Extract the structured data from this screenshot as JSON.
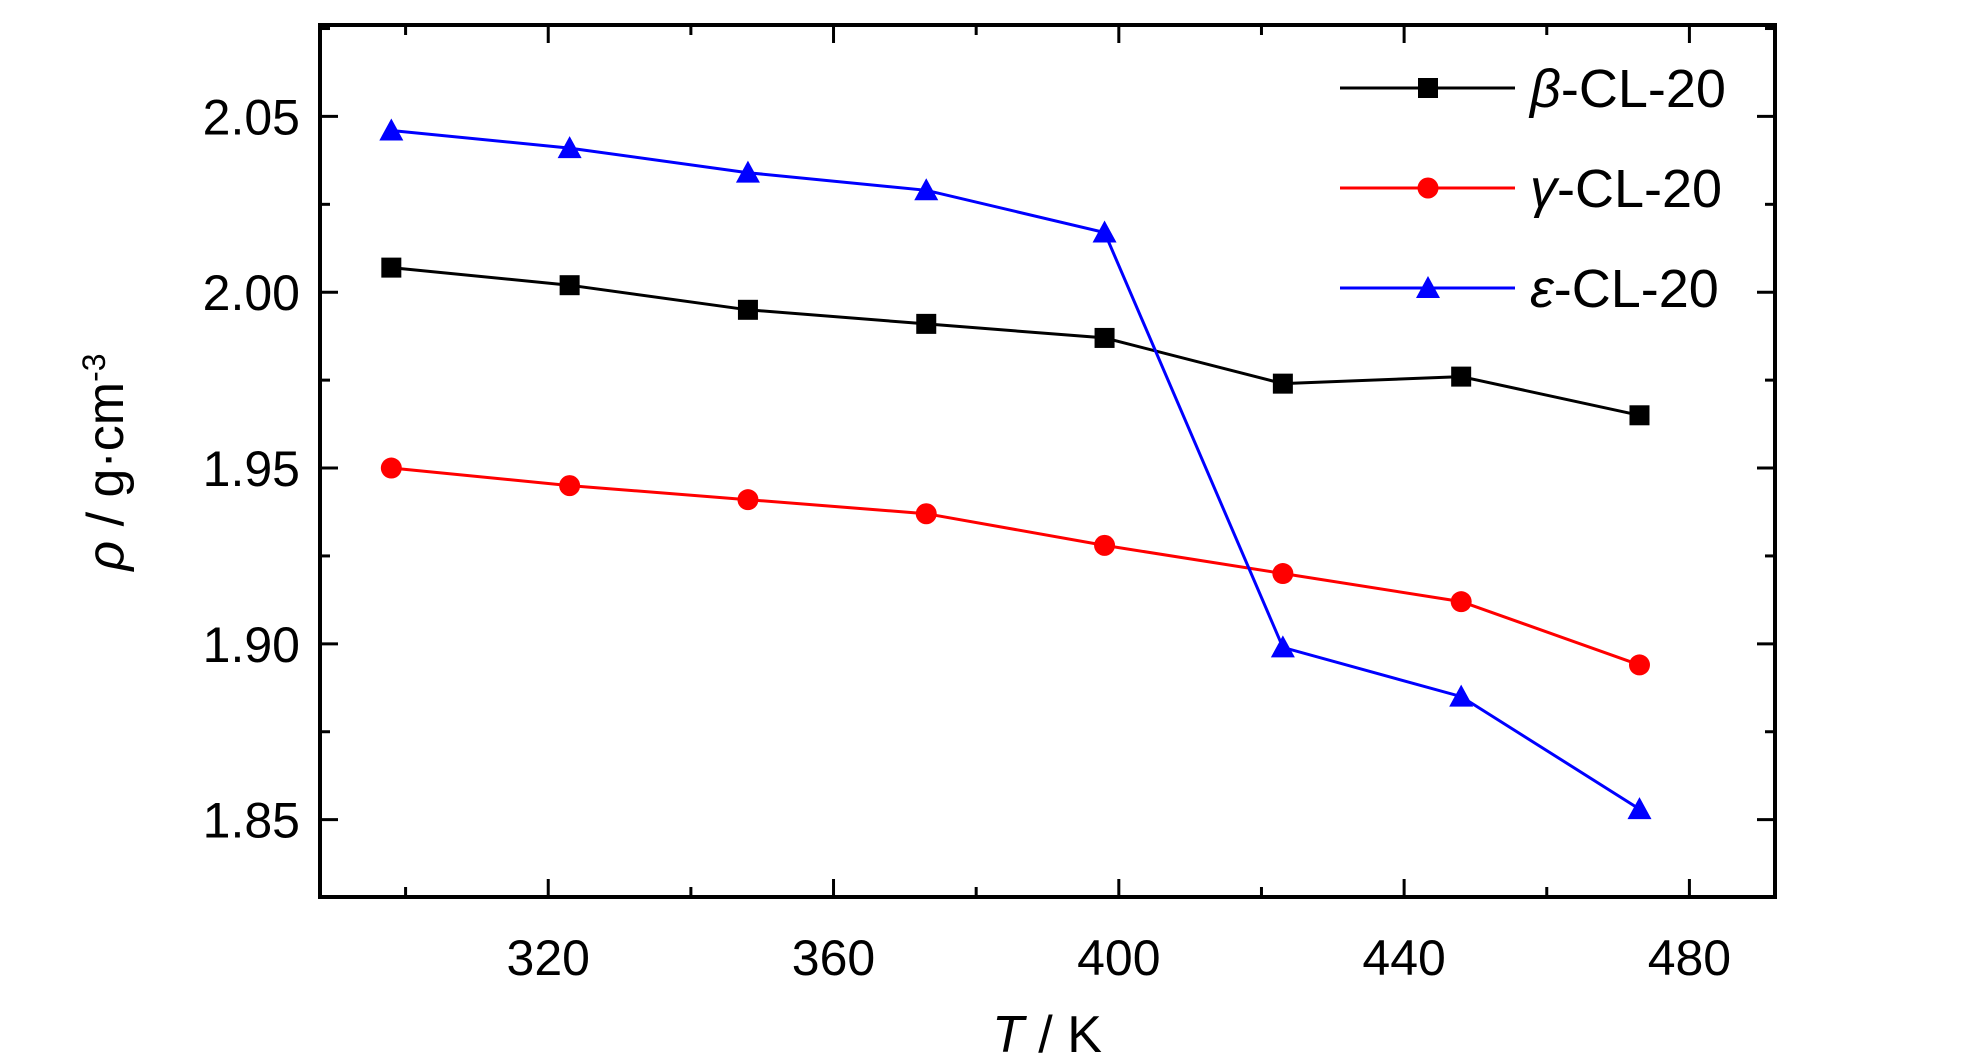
{
  "chart_data": {
    "type": "line",
    "xlabel": {
      "symbol": "T",
      "unit": " / K"
    },
    "ylabel": {
      "symbol": "ρ",
      "unit": " / g·cm",
      "sup": "-3"
    },
    "xlim": [
      288,
      492
    ],
    "ylim": [
      1.828,
      2.076
    ],
    "xticks": [
      320,
      360,
      400,
      440,
      480
    ],
    "xtick_labels": [
      "320",
      "360",
      "400",
      "440",
      "480"
    ],
    "yticks": [
      1.85,
      1.9,
      1.95,
      2.0,
      2.05
    ],
    "ytick_labels": [
      "1.85",
      "1.90",
      "1.95",
      "2.00",
      "2.05"
    ],
    "x": [
      298,
      323,
      348,
      373,
      398,
      423,
      448,
      473
    ],
    "series": [
      {
        "name": "β-CL-20",
        "greek": "β",
        "suffix": "-CL-20",
        "color": "#000000",
        "marker": "square",
        "values": [
          2.007,
          2.002,
          1.995,
          1.991,
          1.987,
          1.974,
          1.976,
          1.965
        ]
      },
      {
        "name": "γ-CL-20",
        "greek": "γ",
        "suffix": "-CL-20",
        "color": "#ff0000",
        "marker": "circle",
        "values": [
          1.95,
          1.945,
          1.941,
          1.937,
          1.928,
          1.92,
          1.912,
          1.894
        ]
      },
      {
        "name": "ε-CL-20",
        "greek": "ε",
        "suffix": "-CL-20",
        "color": "#0000ff",
        "marker": "triangle",
        "values": [
          2.046,
          2.041,
          2.034,
          2.029,
          2.017,
          1.899,
          1.885,
          1.853
        ]
      }
    ],
    "legend_position": "top-right",
    "grid": false
  }
}
